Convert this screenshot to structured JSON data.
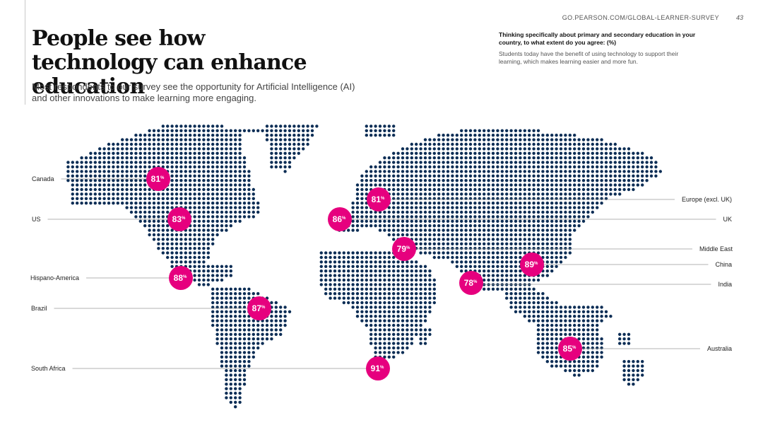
{
  "header": {
    "url": "GO.PEARSON.COM/GLOBAL-LEARNER-SURVEY",
    "page_number": "43"
  },
  "title": "People see how technology can enhance education",
  "subtitle": "Most respondents to our survey see the opportunity for Artificial Intelligence (AI) and other innovations to make learning more engaging.",
  "question": "Thinking specifically about primary and secondary education in your country, to what extent do you agree: (%)",
  "statement": "Students today have the benefit of using technology to support their learning, which makes learning easier and more fun.",
  "colors": {
    "accent": "#e6007e",
    "dots": "#0b2d55",
    "lines": "#9a9a9a"
  },
  "chart_data": {
    "type": "bar",
    "categories": [
      "Canada",
      "US",
      "Hispano-America",
      "Brazil",
      "South Africa",
      "Europe (excl. UK)",
      "UK",
      "Middle East",
      "China",
      "India",
      "Australia"
    ],
    "values": [
      81,
      83,
      88,
      87,
      91,
      81,
      86,
      79,
      89,
      78,
      85
    ],
    "value_suffix": "%"
  }
}
